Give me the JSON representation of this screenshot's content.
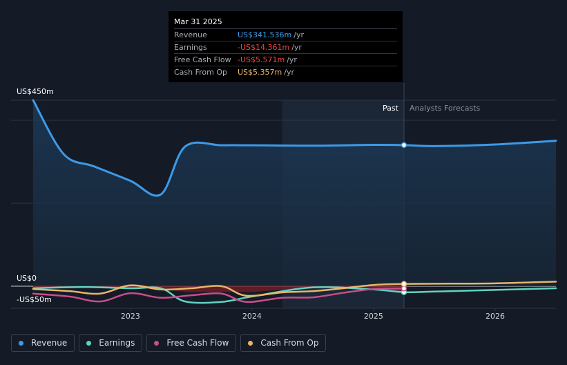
{
  "tooltip": {
    "date": "Mar 31 2025",
    "rows": [
      {
        "label": "Revenue",
        "value": "US$341.536m",
        "unit": "/yr",
        "color": "#3d9ae8"
      },
      {
        "label": "Earnings",
        "value": "-US$14.361m",
        "unit": "/yr",
        "color": "#f04747"
      },
      {
        "label": "Free Cash Flow",
        "value": "-US$5.571m",
        "unit": "/yr",
        "color": "#f04747"
      },
      {
        "label": "Cash From Op",
        "value": "US$5.357m",
        "unit": "/yr",
        "color": "#e8b66a"
      }
    ]
  },
  "chart_data": {
    "type": "line",
    "ylabel_top": "US$450m",
    "ylabel_zero": "US$0",
    "ylabel_bottom": "-US$50m",
    "ylim": [
      -50,
      450
    ],
    "xlim": [
      2022.2,
      2026.5
    ],
    "x_ticks": [
      {
        "value": 2023,
        "label": "2023"
      },
      {
        "value": 2024,
        "label": "2024"
      },
      {
        "value": 2025,
        "label": "2025"
      },
      {
        "value": 2026,
        "label": "2026"
      }
    ],
    "past_label": "Past",
    "forecast_label": "Analysts Forecasts",
    "past_start": 2024.25,
    "divider_x": 2025.25,
    "series": [
      {
        "name": "Revenue",
        "color": "#3d9ae8",
        "x": [
          2022.2,
          2022.45,
          2022.7,
          2023.0,
          2023.25,
          2023.45,
          2023.75,
          2024.0,
          2024.5,
          2025.0,
          2025.25,
          2025.5,
          2026.0,
          2026.5
        ],
        "y": [
          450,
          320,
          290,
          255,
          222,
          338,
          341,
          341,
          340,
          342,
          341.5,
          339,
          343,
          352
        ]
      },
      {
        "name": "Earnings",
        "color": "#5fd3c2",
        "x": [
          2022.2,
          2022.6,
          2023.0,
          2023.25,
          2023.45,
          2023.75,
          2024.0,
          2024.5,
          2025.0,
          2025.25,
          2025.5,
          2026.0,
          2026.5
        ],
        "y": [
          -5,
          -2,
          -5,
          -5,
          -37,
          -38,
          -25,
          -3,
          -8,
          -14.4,
          -13,
          -9,
          -5
        ]
      },
      {
        "name": "Free Cash Flow",
        "color": "#c94d8c",
        "x": [
          2022.2,
          2022.5,
          2022.75,
          2023.0,
          2023.25,
          2023.5,
          2023.75,
          2023.95,
          2024.25,
          2024.5,
          2024.75,
          2025.0,
          2025.25
        ],
        "y": [
          -18,
          -25,
          -37,
          -17,
          -28,
          -22,
          -18,
          -38,
          -28,
          -27,
          -16,
          -7,
          -5.6
        ]
      },
      {
        "name": "Cash From Op",
        "color": "#e8b66a",
        "x": [
          2022.2,
          2022.5,
          2022.75,
          2023.0,
          2023.25,
          2023.5,
          2023.75,
          2023.95,
          2024.25,
          2024.5,
          2024.75,
          2025.0,
          2025.25,
          2025.5,
          2026.0,
          2026.5
        ],
        "y": [
          -7,
          -12,
          -18,
          2,
          -8,
          -5,
          0,
          -23,
          -15,
          -12,
          -5,
          3,
          5.4,
          6,
          7,
          11
        ]
      }
    ],
    "marker_x": 2025.25,
    "markers": [
      {
        "name": "Revenue",
        "y": 341.5
      },
      {
        "name": "Earnings",
        "y": -14.4
      },
      {
        "name": "Free Cash Flow",
        "y": -5.6
      },
      {
        "name": "Cash From Op",
        "y": 5.4
      }
    ]
  },
  "legend": [
    {
      "label": "Revenue",
      "color": "#3d9ae8"
    },
    {
      "label": "Earnings",
      "color": "#5fd3c2"
    },
    {
      "label": "Free Cash Flow",
      "color": "#c94d8c"
    },
    {
      "label": "Cash From Op",
      "color": "#e8b66a"
    }
  ]
}
